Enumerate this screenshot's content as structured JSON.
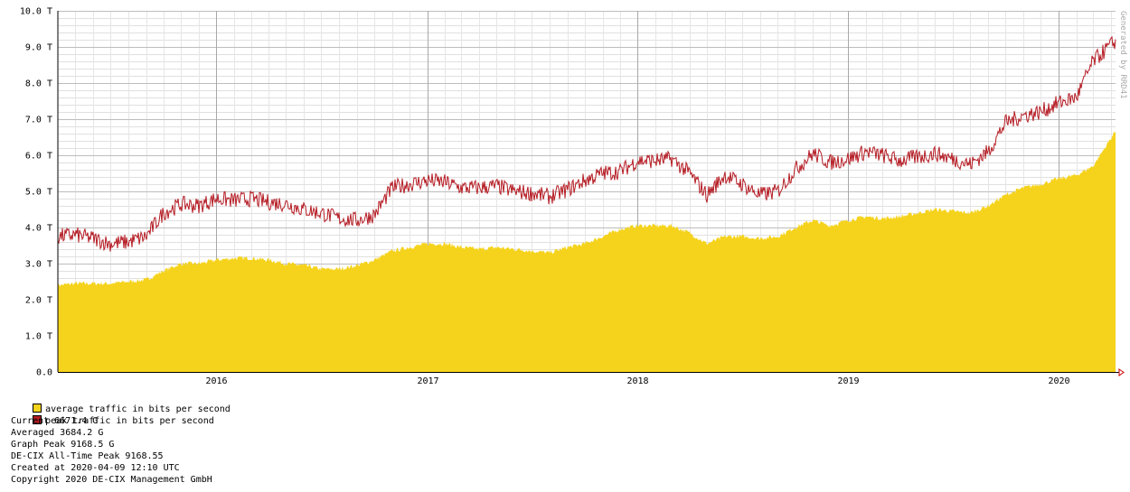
{
  "chart_data": {
    "type": "area",
    "xlim": [
      "2015-04",
      "2020-04-09"
    ],
    "ylim": [
      0,
      10
    ],
    "y_unit": "T",
    "y_ticks": [
      "0.0",
      "1.0 T",
      "2.0 T",
      "3.0 T",
      "4.0 T",
      "5.0 T",
      "6.0 T",
      "7.0 T",
      "8.0 T",
      "9.0 T",
      "10.0 T"
    ],
    "x_ticks": [
      "2016",
      "2017",
      "2018",
      "2019",
      "2020"
    ],
    "grid": true,
    "series": [
      {
        "name": "average traffic in bits per second",
        "color": "#f5d31c",
        "style": "area",
        "points": [
          [
            "2015-04",
            2.4
          ],
          [
            "2015-05",
            2.45
          ],
          [
            "2015-06",
            2.45
          ],
          [
            "2015-07",
            2.45
          ],
          [
            "2015-08",
            2.5
          ],
          [
            "2015-09",
            2.55
          ],
          [
            "2015-10",
            2.8
          ],
          [
            "2015-11",
            3.0
          ],
          [
            "2015-12",
            3.0
          ],
          [
            "2016-01",
            3.1
          ],
          [
            "2016-02",
            3.15
          ],
          [
            "2016-03",
            3.15
          ],
          [
            "2016-04",
            3.1
          ],
          [
            "2016-05",
            3.0
          ],
          [
            "2016-06",
            2.95
          ],
          [
            "2016-07",
            2.85
          ],
          [
            "2016-08",
            2.85
          ],
          [
            "2016-09",
            2.95
          ],
          [
            "2016-10",
            3.1
          ],
          [
            "2016-11",
            3.35
          ],
          [
            "2016-12",
            3.45
          ],
          [
            "2017-01",
            3.55
          ],
          [
            "2017-02",
            3.55
          ],
          [
            "2017-03",
            3.45
          ],
          [
            "2017-04",
            3.4
          ],
          [
            "2017-05",
            3.45
          ],
          [
            "2017-06",
            3.4
          ],
          [
            "2017-07",
            3.35
          ],
          [
            "2017-08",
            3.3
          ],
          [
            "2017-09",
            3.45
          ],
          [
            "2017-10",
            3.55
          ],
          [
            "2017-11",
            3.75
          ],
          [
            "2017-12",
            3.95
          ],
          [
            "2018-01",
            4.05
          ],
          [
            "2018-02",
            4.05
          ],
          [
            "2018-03",
            4.05
          ],
          [
            "2018-04",
            3.85
          ],
          [
            "2018-05",
            3.55
          ],
          [
            "2018-06",
            3.75
          ],
          [
            "2018-07",
            3.75
          ],
          [
            "2018-08",
            3.7
          ],
          [
            "2018-09",
            3.75
          ],
          [
            "2018-10",
            4.0
          ],
          [
            "2018-11",
            4.2
          ],
          [
            "2018-12",
            4.05
          ],
          [
            "2019-01",
            4.2
          ],
          [
            "2019-02",
            4.3
          ],
          [
            "2019-03",
            4.25
          ],
          [
            "2019-04",
            4.3
          ],
          [
            "2019-05",
            4.4
          ],
          [
            "2019-06",
            4.5
          ],
          [
            "2019-07",
            4.45
          ],
          [
            "2019-08",
            4.4
          ],
          [
            "2019-09",
            4.6
          ],
          [
            "2019-10",
            4.9
          ],
          [
            "2019-11",
            5.1
          ],
          [
            "2019-12",
            5.2
          ],
          [
            "2020-01",
            5.35
          ],
          [
            "2020-02",
            5.45
          ],
          [
            "2020-03",
            5.7
          ],
          [
            "2020-04-09",
            6.67
          ]
        ]
      },
      {
        "name": "peak traffic in bits per second",
        "color": "#b51c24",
        "style": "line",
        "points": [
          [
            "2015-04",
            3.75
          ],
          [
            "2015-05",
            3.8
          ],
          [
            "2015-06",
            3.7
          ],
          [
            "2015-07",
            3.55
          ],
          [
            "2015-08",
            3.6
          ],
          [
            "2015-09",
            3.75
          ],
          [
            "2015-10",
            4.4
          ],
          [
            "2015-11",
            4.65
          ],
          [
            "2015-12",
            4.6
          ],
          [
            "2016-01",
            4.8
          ],
          [
            "2016-02",
            4.75
          ],
          [
            "2016-03",
            4.8
          ],
          [
            "2016-04",
            4.7
          ],
          [
            "2016-05",
            4.65
          ],
          [
            "2016-06",
            4.5
          ],
          [
            "2016-07",
            4.4
          ],
          [
            "2016-08",
            4.25
          ],
          [
            "2016-09",
            4.2
          ],
          [
            "2016-10",
            4.35
          ],
          [
            "2016-11",
            5.1
          ],
          [
            "2016-12",
            5.2
          ],
          [
            "2017-01",
            5.3
          ],
          [
            "2017-02",
            5.25
          ],
          [
            "2017-03",
            5.1
          ],
          [
            "2017-04",
            5.1
          ],
          [
            "2017-05",
            5.15
          ],
          [
            "2017-06",
            5.0
          ],
          [
            "2017-07",
            4.95
          ],
          [
            "2017-08",
            4.85
          ],
          [
            "2017-09",
            5.05
          ],
          [
            "2017-10",
            5.3
          ],
          [
            "2017-11",
            5.5
          ],
          [
            "2017-12",
            5.55
          ],
          [
            "2018-01",
            5.85
          ],
          [
            "2018-02",
            5.85
          ],
          [
            "2018-03",
            5.9
          ],
          [
            "2018-04",
            5.5
          ],
          [
            "2018-05",
            4.9
          ],
          [
            "2018-06",
            5.45
          ],
          [
            "2018-07",
            5.2
          ],
          [
            "2018-08",
            4.9
          ],
          [
            "2018-09",
            5.0
          ],
          [
            "2018-10",
            5.6
          ],
          [
            "2018-11",
            6.05
          ],
          [
            "2018-12",
            5.8
          ],
          [
            "2019-01",
            5.9
          ],
          [
            "2019-02",
            6.1
          ],
          [
            "2019-03",
            6.0
          ],
          [
            "2019-04",
            5.85
          ],
          [
            "2019-05",
            5.95
          ],
          [
            "2019-06",
            6.05
          ],
          [
            "2019-07",
            5.9
          ],
          [
            "2019-08",
            5.75
          ],
          [
            "2019-09",
            6.1
          ],
          [
            "2019-10",
            6.9
          ],
          [
            "2019-11",
            7.1
          ],
          [
            "2019-12",
            7.2
          ],
          [
            "2020-01",
            7.45
          ],
          [
            "2020-02",
            7.6
          ],
          [
            "2020-03",
            8.6
          ],
          [
            "2020-04-09",
            9.17
          ]
        ]
      }
    ],
    "watermark": "Generated by RRD41"
  },
  "legend": {
    "average_label": "average traffic in bits per second",
    "peak_label": "peak traffic in bits per second",
    "current": "Current 6671.4 G",
    "averaged": "Averaged 3684.2 G",
    "graph_peak": "Graph Peak 9168.5 G",
    "alltime_peak": "DE-CIX All-Time Peak 9168.55",
    "created": "Created at 2020-04-09 12:10 UTC",
    "copyright": "Copyright 2020 DE-CIX Management GmbH"
  }
}
